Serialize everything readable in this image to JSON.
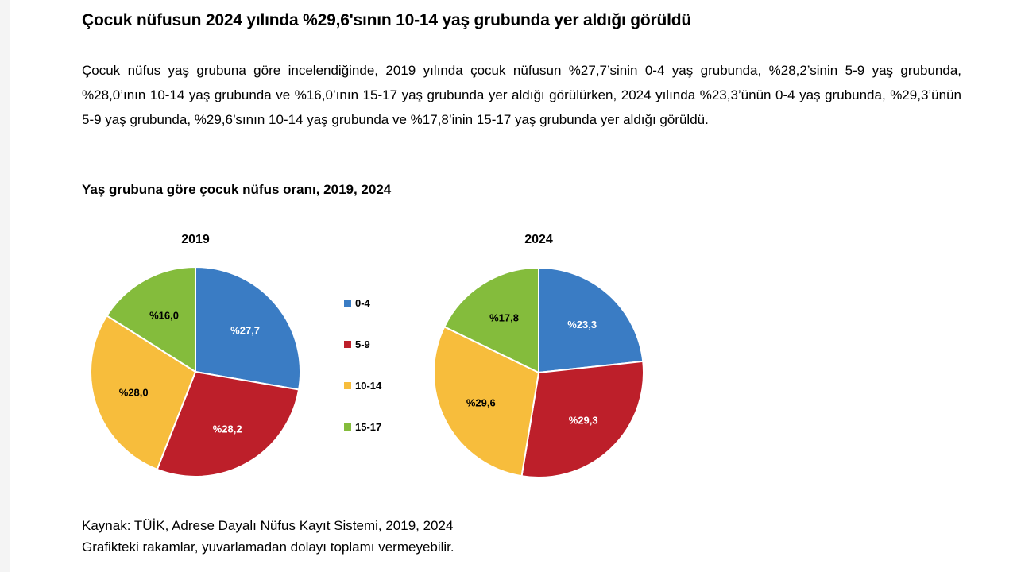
{
  "article": {
    "headline": "Çocuk nüfusun 2024 yılında %29,6'sının 10-14 yaş grubunda yer aldığı görüldü",
    "paragraph": "Çocuk nüfus yaş grubuna göre incelendiğinde, 2019 yılında çocuk nüfusun %27,7’sinin 0-4 yaş grubunda, %28,2’sinin 5-9 yaş grubunda, %28,0’ının 10-14 yaş grubunda ve %16,0’ının 15-17 yaş grubunda yer aldığı görülürken, 2024 yılında %23,3’ünün 0-4 yaş grubunda, %29,3’ünün 5-9 yaş grubunda, %29,6’sının 10-14 yaş grubunda ve %17,8’inin 15-17 yaş grubunda yer aldığı görüldü."
  },
  "chart_data": {
    "type": "pie",
    "title": "Yaş grubuna göre çocuk nüfus oranı, 2019, 2024",
    "categories": [
      "0-4",
      "5-9",
      "10-14",
      "15-17"
    ],
    "colors": [
      "#3a7cc4",
      "#bd1f2a",
      "#f7bd3c",
      "#84bc3c"
    ],
    "legend_position": "center",
    "pies": [
      {
        "name": "2019",
        "values": [
          27.7,
          28.2,
          28.0,
          16.0
        ],
        "labels": [
          "%27,7",
          "%28,2",
          "%28,0",
          "%16,0"
        ]
      },
      {
        "name": "2024",
        "values": [
          23.3,
          29.3,
          29.6,
          17.8
        ],
        "labels": [
          "%23,3",
          "%29,3",
          "%29,6",
          "%17,8"
        ]
      }
    ]
  },
  "footer": {
    "source": "Kaynak: TÜİK, Adrese Dayalı Nüfus Kayıt Sistemi, 2019, 2024",
    "note": "Grafikteki rakamlar, yuvarlamadan dolayı toplamı vermeyebilir."
  }
}
